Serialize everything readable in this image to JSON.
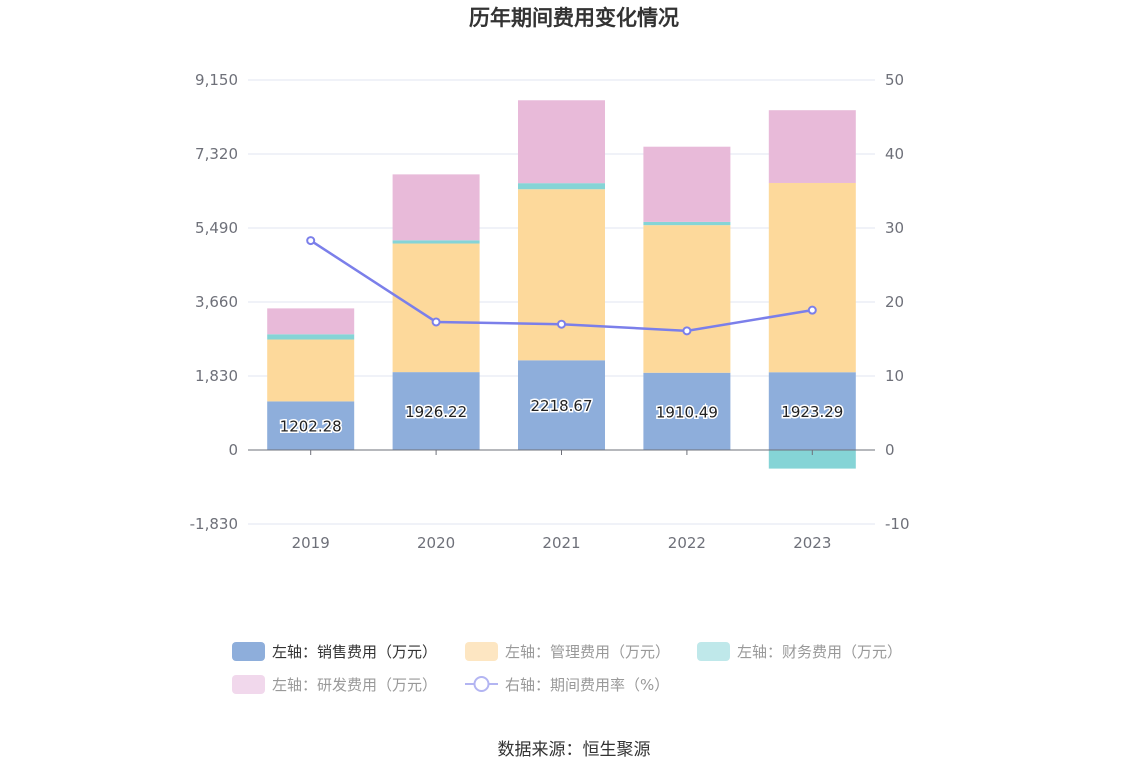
{
  "chart_data": {
    "type": "bar",
    "title": "历年期间费用变化情况",
    "categories": [
      "2019",
      "2020",
      "2021",
      "2022",
      "2023"
    ],
    "left_axis": {
      "ticks": [
        "-1,830",
        "0",
        "1,830",
        "3,660",
        "5,490",
        "7,320",
        "9,150"
      ],
      "ylim": [
        -1830,
        9150
      ]
    },
    "right_axis": {
      "ticks": [
        "-10",
        "0",
        "10",
        "20",
        "30",
        "40",
        "50"
      ],
      "ylim": [
        -10,
        50
      ]
    },
    "stacked": true,
    "series": [
      {
        "name": "左轴：销售费用（万元）",
        "axis": "left",
        "color": "#8eaedb",
        "values": [
          1202.28,
          1926.22,
          2218.67,
          1910.49,
          1923.29
        ],
        "labels": [
          "1202.28",
          "1926.22",
          "2218.67",
          "1910.49",
          "1923.29"
        ]
      },
      {
        "name": "左轴：管理费用（万元）",
        "axis": "left",
        "color": "#fdd99b",
        "values": [
          1530,
          3180,
          4230,
          3650,
          4680
        ]
      },
      {
        "name": "左轴：财务费用（万元）",
        "axis": "left",
        "color": "#85d4d6",
        "values": [
          130,
          80,
          150,
          80,
          0
        ],
        "negative_values": [
          0,
          0,
          0,
          0,
          -460
        ]
      },
      {
        "name": "左轴：研发费用（万元）",
        "axis": "left",
        "color": "#e8bad9",
        "values": [
          640,
          1630,
          2050,
          1860,
          1800
        ]
      },
      {
        "name": "右轴：期间费用率（%）",
        "axis": "right",
        "type": "line",
        "color": "#7b7fea",
        "values": [
          28.3,
          17.3,
          17.0,
          16.1,
          18.9
        ]
      }
    ],
    "legend_position": "bottom"
  },
  "legend": [
    {
      "label": "左轴：销售费用（万元）",
      "color": "#8eaedb",
      "kind": "box",
      "faded": false
    },
    {
      "label": "左轴：管理费用（万元）",
      "color": "#fde6c2",
      "kind": "box",
      "faded": true
    },
    {
      "label": "左轴：财务费用（万元）",
      "color": "#bfe8ea",
      "kind": "box",
      "faded": true
    },
    {
      "label": "左轴：研发费用（万元）",
      "color": "#f1d8ec",
      "kind": "box",
      "faded": true
    },
    {
      "label": "右轴：期间费用率（%）",
      "color": "#b3b5f2",
      "kind": "line",
      "faded": true
    }
  ],
  "source": "数据来源：恒生聚源"
}
